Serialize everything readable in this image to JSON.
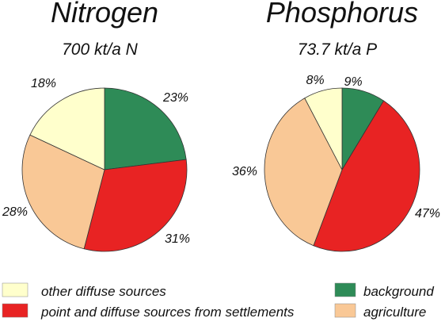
{
  "chart_data": [
    {
      "type": "pie",
      "title": "Nitrogen",
      "subtitle": "700 kt/a N",
      "slices": [
        {
          "label": "background",
          "value": 23,
          "display": "23%"
        },
        {
          "label": "point and diffuse sources from settlements",
          "value": 31,
          "display": "31%"
        },
        {
          "label": "agriculture",
          "value": 28,
          "display": "28%"
        },
        {
          "label": "other diffuse sources",
          "value": 18,
          "display": "18%"
        }
      ]
    },
    {
      "type": "pie",
      "title": "Phosphorus",
      "subtitle": "73.7 kt/a P",
      "slices": [
        {
          "label": "background",
          "value": 9,
          "display": "9%"
        },
        {
          "label": "point and diffuse sources from settlements",
          "value": 47,
          "display": "47%"
        },
        {
          "label": "agriculture",
          "value": 36,
          "display": "36%"
        },
        {
          "label": "other diffuse sources",
          "value": 8,
          "display": "8%"
        }
      ]
    }
  ],
  "legend": [
    {
      "label": "other diffuse sources",
      "color": "#ffffcc",
      "placement": "bottom-left"
    },
    {
      "label": "point and diffuse sources from settlements",
      "color": "#e82323",
      "placement": "bottom-left"
    },
    {
      "label": "background",
      "color": "#2e8b57",
      "placement": "bottom-right"
    },
    {
      "label": "agriculture",
      "color": "#f9c896",
      "placement": "bottom-right"
    }
  ],
  "colors": {
    "background": "#2e8b57",
    "point and diffuse sources from settlements": "#e82323",
    "agriculture": "#f9c896",
    "other diffuse sources": "#ffffcc"
  }
}
